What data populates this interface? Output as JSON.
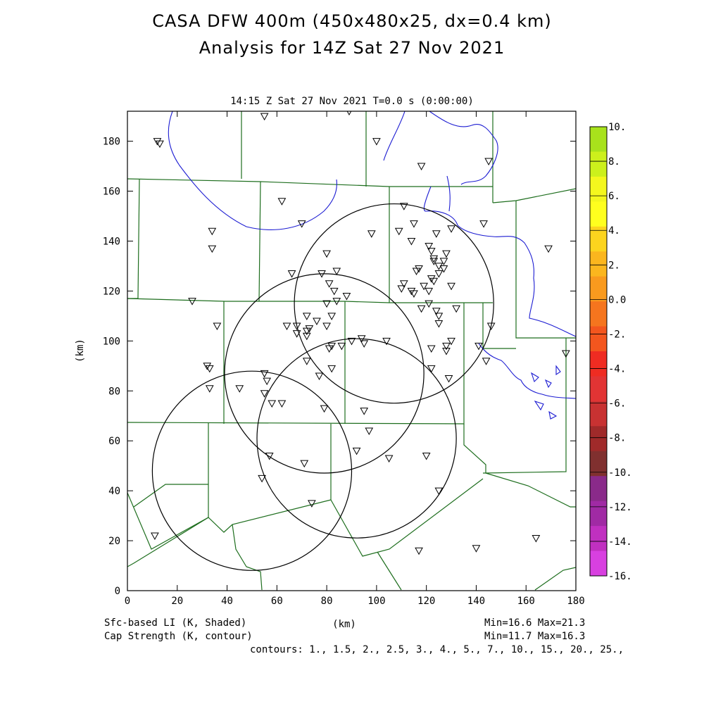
{
  "title": {
    "line1": "CASA DFW 400m (450x480x25, dx=0.4 km)",
    "line2": "Analysis for 14Z Sat 27 Nov 2021"
  },
  "subtitle": "14:15 Z Sat 27 Nov 2021    T=0.0 s (0:00:00)",
  "axes": {
    "xlabel": "(km)",
    "ylabel": "(km)",
    "xlim": [
      0,
      180
    ],
    "ylim": [
      0,
      192
    ],
    "xticks": [
      "0",
      "20",
      "40",
      "60",
      "80",
      "100",
      "120",
      "140",
      "160",
      "180"
    ],
    "yticks": [
      "0",
      "20",
      "40",
      "60",
      "80",
      "100",
      "120",
      "140",
      "160",
      "180"
    ]
  },
  "colorbar": {
    "labels": [
      "10.",
      "8.",
      "6.",
      "4.",
      "2.",
      "0.0",
      "-2.",
      "-4.",
      "-6.",
      "-8.",
      "-10.",
      "-12.",
      "-14.",
      "-16."
    ],
    "colors": [
      "#a8e21c",
      "#ccf01c",
      "#f4f71e",
      "#ffff1e",
      "#fcd41e",
      "#fbb61e",
      "#f99a1e",
      "#f5751e",
      "#f3561e",
      "#ef2c22",
      "#e23434",
      "#c83232",
      "#a02a2a",
      "#80302f",
      "#8a2a8a",
      "#a02aa4",
      "#c030c0",
      "#d840e0"
    ]
  },
  "footer": {
    "left1": "Sfc-based LI (K, Shaded)",
    "left2": "Cap Strength (K, contour)",
    "center": "(km)",
    "right1": "Min=16.6 Max=21.3",
    "right2": "Min=11.7 Max=16.3",
    "contours": "contours: 1., 1.5, 2., 2.5, 3., 4., 5., 7., 10., 15., 20., 25.,"
  },
  "map": {
    "radar_circles_km": [
      {
        "cx": 107,
        "cy": 115,
        "r": 40
      },
      {
        "cx": 79,
        "cy": 87,
        "r": 40
      },
      {
        "cx": 92,
        "cy": 61,
        "r": 40
      },
      {
        "cx": 50,
        "cy": 48,
        "r": 40
      }
    ],
    "station_markers_km": [
      [
        12,
        180
      ],
      [
        13,
        179
      ],
      [
        55,
        190
      ],
      [
        89,
        192
      ],
      [
        100,
        180
      ],
      [
        118,
        170
      ],
      [
        145,
        172
      ],
      [
        62,
        156
      ],
      [
        70,
        147
      ],
      [
        34,
        144
      ],
      [
        34,
        137
      ],
      [
        111,
        154
      ],
      [
        115,
        147
      ],
      [
        109,
        144
      ],
      [
        98,
        143
      ],
      [
        124,
        143
      ],
      [
        130,
        145
      ],
      [
        143,
        147
      ],
      [
        121,
        138
      ],
      [
        114,
        140
      ],
      [
        128,
        135
      ],
      [
        122,
        136
      ],
      [
        127,
        132
      ],
      [
        123,
        133
      ],
      [
        125,
        130
      ],
      [
        123,
        132
      ],
      [
        117,
        129
      ],
      [
        116,
        128
      ],
      [
        125,
        127
      ],
      [
        123,
        124
      ],
      [
        127,
        129
      ],
      [
        122,
        125
      ],
      [
        119,
        122
      ],
      [
        110,
        121
      ],
      [
        111,
        123
      ],
      [
        114,
        120
      ],
      [
        115,
        119
      ],
      [
        121,
        120
      ],
      [
        121,
        115
      ],
      [
        118,
        113
      ],
      [
        125,
        110
      ],
      [
        125,
        107
      ],
      [
        132,
        113
      ],
      [
        130,
        122
      ],
      [
        169,
        137
      ],
      [
        66,
        127
      ],
      [
        84,
        128
      ],
      [
        80,
        135
      ],
      [
        78,
        127
      ],
      [
        81,
        123
      ],
      [
        83,
        120
      ],
      [
        88,
        118
      ],
      [
        80,
        115
      ],
      [
        84,
        116
      ],
      [
        82,
        110
      ],
      [
        72,
        110
      ],
      [
        68,
        106
      ],
      [
        64,
        106
      ],
      [
        72,
        104
      ],
      [
        73,
        105
      ],
      [
        68,
        103
      ],
      [
        72,
        102
      ],
      [
        80,
        106
      ],
      [
        104,
        100
      ],
      [
        94,
        101
      ],
      [
        90,
        100
      ],
      [
        95,
        99
      ],
      [
        86,
        98
      ],
      [
        81,
        97
      ],
      [
        82,
        98
      ],
      [
        76,
        108
      ],
      [
        26,
        116
      ],
      [
        36,
        106
      ],
      [
        32,
        90
      ],
      [
        33,
        89
      ],
      [
        33,
        81
      ],
      [
        45,
        81
      ],
      [
        55,
        87
      ],
      [
        56,
        84
      ],
      [
        55,
        79
      ],
      [
        58,
        75
      ],
      [
        62,
        75
      ],
      [
        72,
        92
      ],
      [
        82,
        89
      ],
      [
        77,
        86
      ],
      [
        79,
        73
      ],
      [
        95,
        72
      ],
      [
        97,
        64
      ],
      [
        92,
        56
      ],
      [
        122,
        97
      ],
      [
        128,
        98
      ],
      [
        130,
        100
      ],
      [
        141,
        98
      ],
      [
        128,
        96
      ],
      [
        122,
        89
      ],
      [
        129,
        85
      ],
      [
        144,
        92
      ],
      [
        146,
        106
      ],
      [
        176,
        95
      ],
      [
        124,
        112
      ],
      [
        57,
        54
      ],
      [
        71,
        51
      ],
      [
        54,
        45
      ],
      [
        74,
        35
      ],
      [
        105,
        53
      ],
      [
        120,
        54
      ],
      [
        125,
        40
      ],
      [
        11,
        22
      ],
      [
        117,
        16
      ],
      [
        140,
        17
      ],
      [
        164,
        21
      ]
    ]
  }
}
